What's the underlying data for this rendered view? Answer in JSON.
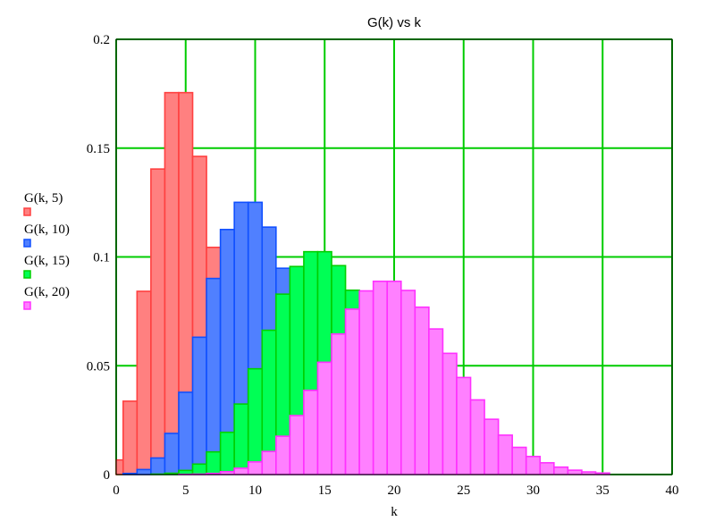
{
  "chart_data": {
    "type": "bar",
    "title": "G(k) vs k",
    "xlabel": "k",
    "ylabel": "",
    "xlim": [
      0,
      40
    ],
    "ylim": [
      0,
      0.2
    ],
    "x_ticks": [
      "0",
      "5",
      "10",
      "15",
      "20",
      "25",
      "30",
      "35",
      "40"
    ],
    "y_ticks": [
      "0",
      "0.05",
      "0.1",
      "0.15",
      "0.2"
    ],
    "grid": true,
    "grid_color": "#00cc00",
    "legend_position": "left",
    "x": [
      0,
      1,
      2,
      3,
      4,
      5,
      6,
      7,
      8,
      9,
      10,
      11,
      12,
      13,
      14,
      15,
      16,
      17,
      18,
      19,
      20,
      21,
      22,
      23,
      24,
      25,
      26,
      27,
      28,
      29,
      30,
      31,
      32,
      33,
      34,
      35
    ],
    "series": [
      {
        "name": "G(k, 5)",
        "color": "#ff4040",
        "fill": "#ff8080",
        "values": [
          0.0067,
          0.0337,
          0.0842,
          0.1404,
          0.1755,
          0.1755,
          0.1462,
          0.1044,
          0.0653,
          0.0363,
          0.0181,
          0.0082,
          0.0034,
          0.0013,
          0.0005,
          0.0002,
          0,
          0,
          0,
          0,
          0,
          0,
          0,
          0,
          0,
          0,
          0,
          0,
          0,
          0,
          0,
          0,
          0,
          0,
          0,
          0
        ]
      },
      {
        "name": "G(k, 10)",
        "color": "#1050ff",
        "fill": "#5080ff",
        "values": [
          0,
          0.0005,
          0.0023,
          0.0076,
          0.0189,
          0.0378,
          0.0631,
          0.0901,
          0.1126,
          0.1251,
          0.1251,
          0.1137,
          0.0948,
          0.0729,
          0.0521,
          0.0347,
          0.0217,
          0.0128,
          0.0071,
          0.0037,
          0.0019,
          0.0009,
          0.0004,
          0.0002,
          0,
          0,
          0,
          0,
          0,
          0,
          0,
          0,
          0,
          0,
          0,
          0
        ]
      },
      {
        "name": "G(k, 15)",
        "color": "#00d000",
        "fill": "#00ff55",
        "values": [
          0,
          0,
          0,
          0.0002,
          0.0006,
          0.0019,
          0.0048,
          0.0104,
          0.0194,
          0.0324,
          0.0486,
          0.0663,
          0.0829,
          0.0956,
          0.1024,
          0.1024,
          0.096,
          0.0847,
          0.0706,
          0.0557,
          0.0418,
          0.0299,
          0.0204,
          0.0133,
          0.0083,
          0.005,
          0.0029,
          0.0016,
          0.0009,
          0.0004,
          0.0002,
          0.0001,
          0,
          0,
          0,
          0
        ]
      },
      {
        "name": "G(k, 20)",
        "color": "#ff30ff",
        "fill": "#ff80ff",
        "values": [
          0,
          0,
          0,
          0,
          0,
          0.0001,
          0.0002,
          0.0005,
          0.0013,
          0.0029,
          0.0058,
          0.0106,
          0.0176,
          0.0271,
          0.0387,
          0.0516,
          0.0646,
          0.076,
          0.0844,
          0.0888,
          0.0888,
          0.0846,
          0.0769,
          0.0669,
          0.0557,
          0.0446,
          0.0343,
          0.0254,
          0.0181,
          0.0125,
          0.0083,
          0.0054,
          0.0034,
          0.002,
          0.0012,
          0.0007
        ]
      }
    ]
  }
}
